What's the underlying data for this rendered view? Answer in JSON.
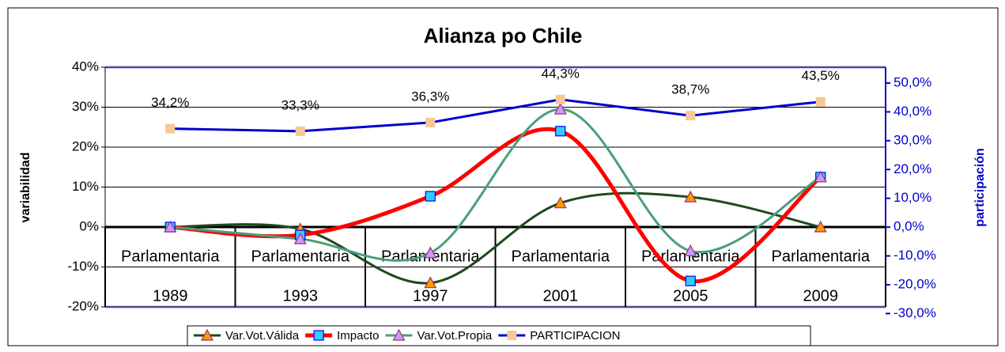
{
  "chart_data": {
    "type": "line",
    "title": "Alianza po Chile",
    "categories": [
      "1989",
      "1993",
      "1997",
      "2001",
      "2005",
      "2009"
    ],
    "subcategories": [
      "Parlamentaria",
      "Parlamentaria",
      "Parlamentaria",
      "Parlamentaria",
      "Parlamentaria",
      "Parlamentaria"
    ],
    "y_label": "variabilidad",
    "y2_label": "participación",
    "ylim": [
      -20,
      40
    ],
    "yticks": [
      {
        "value": -20,
        "label": "-20%"
      },
      {
        "value": -10,
        "label": "-10%"
      },
      {
        "value": 0,
        "label": "0%"
      },
      {
        "value": 10,
        "label": "10%"
      },
      {
        "value": 20,
        "label": "20%"
      },
      {
        "value": 30,
        "label": "30%"
      },
      {
        "value": 40,
        "label": "40%"
      }
    ],
    "y2lim": [
      -27.7,
      55.5
    ],
    "y2ticks": [
      {
        "value": -30,
        "label": "-30,0%"
      },
      {
        "value": -20,
        "label": "-20,0%"
      },
      {
        "value": -10,
        "label": "-10,0%"
      },
      {
        "value": 0,
        "label": "0,0%"
      },
      {
        "value": 10,
        "label": "10,0%"
      },
      {
        "value": 20,
        "label": "20,0%"
      },
      {
        "value": 30,
        "label": "30,0%"
      },
      {
        "value": 40,
        "label": "40,0%"
      },
      {
        "value": 50,
        "label": "50,0%"
      }
    ],
    "grid": true,
    "series": [
      {
        "name": "Var.Vot.Válida",
        "color": "#1f4a1f",
        "marker": "triangle",
        "marker_color": "#ff9900",
        "values": [
          0,
          -0.5,
          -14,
          6,
          7.5,
          0
        ]
      },
      {
        "name": "Impacto",
        "color": "#ff0000",
        "marker": "square",
        "marker_color": "#33ccff",
        "values": [
          0,
          -2,
          7.7,
          24,
          -13.5,
          12.5
        ]
      },
      {
        "name": "Var.Vot.Propia",
        "color": "#4a9e7a",
        "marker": "triangle",
        "marker_color": "#cc99ff",
        "values": [
          0,
          -3,
          -6.5,
          29.5,
          -6,
          12.5
        ]
      },
      {
        "name": "PARTICIPACION",
        "color": "#0000cc",
        "marker": "square",
        "marker_color": "#f5c897",
        "axis": "y2",
        "values": [
          34.2,
          33.3,
          36.3,
          44.3,
          38.7,
          43.5
        ],
        "value_labels": [
          "34,2%",
          "33,3%",
          "36,3%",
          "44,3%",
          "38,7%",
          "43,5%"
        ]
      }
    ]
  }
}
